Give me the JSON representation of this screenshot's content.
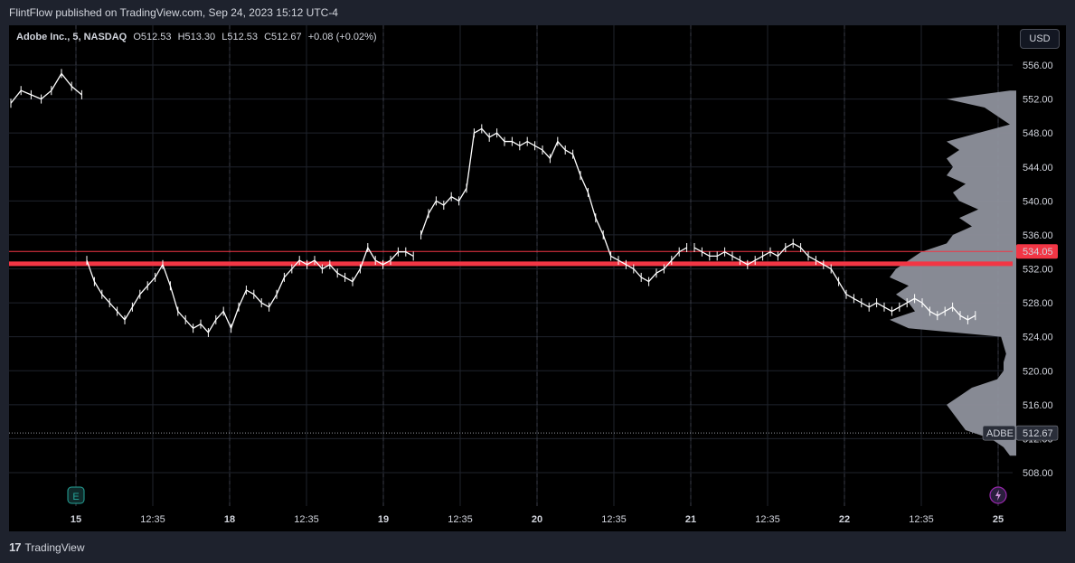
{
  "header": {
    "published": "FlintFlow published on TradingView.com, Sep 24, 2023 15:12 UTC-4"
  },
  "legend": {
    "symbol": "Adobe Inc., 5, NASDAQ",
    "open": "O512.53",
    "high": "H513.30",
    "low": "L512.53",
    "close": "C512.67",
    "change": "+0.08 (+0.02%)"
  },
  "currency_button": "USD",
  "footer": {
    "brand": "TradingView",
    "logo_text": "17"
  },
  "badges": {
    "earnings": "E",
    "event_icon": "lightning-icon"
  },
  "colors": {
    "background": "#000000",
    "candles": "#ffffff",
    "level": "#f23645",
    "profile": "#8e919c"
  },
  "chart_data": {
    "type": "line",
    "title": "",
    "price_axis": {
      "min": 506.0,
      "max": 558.0,
      "ticks": [
        556,
        552,
        548,
        544,
        540,
        536,
        532,
        528,
        524,
        520,
        516,
        512,
        508
      ],
      "tick_labels": [
        "556.00",
        "552.00",
        "548.00",
        "544.00",
        "540.00",
        "536.00",
        "532.00",
        "528.00",
        "524.00",
        "520.00",
        "516.00",
        "512.00",
        "508.00"
      ]
    },
    "time_axis": {
      "labels": [
        "15",
        "12:35",
        "18",
        "12:35",
        "19",
        "12:35",
        "20",
        "12:35",
        "21",
        "12:35",
        "22",
        "12:35",
        "25"
      ],
      "major": [
        true,
        false,
        true,
        false,
        true,
        false,
        true,
        false,
        true,
        false,
        true,
        false,
        true
      ]
    },
    "grid": true,
    "levels": [
      {
        "price": 534.05,
        "label": "534.05",
        "style": "thin"
      },
      {
        "price": 532.6,
        "label": "",
        "style": "thick"
      }
    ],
    "last_price": {
      "symbol": "ADBE",
      "price": 512.67,
      "label": "512.67"
    },
    "series": [
      {
        "x": [
          0,
          0.4,
          0.8,
          1.2,
          1.6,
          2.0,
          2.4,
          2.8
        ],
        "y": [
          551.5,
          553.0,
          552.5,
          552.0,
          553.0,
          555.0,
          553.5,
          552.5
        ]
      },
      {
        "x": [
          3.0,
          3.3,
          3.6,
          3.9,
          4.2,
          4.5,
          4.8,
          5.1,
          5.4,
          5.7,
          6.0,
          6.3,
          6.6,
          6.9,
          7.2,
          7.5,
          7.8,
          8.1,
          8.4,
          8.7,
          9.0,
          9.3,
          9.6,
          9.9,
          10.2,
          10.5,
          10.8,
          11.1,
          11.4,
          11.7,
          12.0,
          12.3,
          12.6,
          12.9,
          13.2,
          13.5,
          13.8,
          14.1,
          14.4,
          14.7,
          15.0,
          15.3,
          15.6,
          15.9
        ],
        "y": [
          533.0,
          530.5,
          529.0,
          528.0,
          527.0,
          526.0,
          527.5,
          529.0,
          530.0,
          531.0,
          532.5,
          530.0,
          527.0,
          526.0,
          525.0,
          525.5,
          524.5,
          526.0,
          527.0,
          525.0,
          527.5,
          529.5,
          529.0,
          528.0,
          527.5,
          529.0,
          531.0,
          532.0,
          533.0,
          532.5,
          533.0,
          532.0,
          532.5,
          531.5,
          531.0,
          530.5,
          532.0,
          534.5,
          533.0,
          532.5,
          533.0,
          534.0,
          534.0,
          533.5
        ]
      },
      {
        "x": [
          16.2,
          16.5,
          16.8,
          17.1,
          17.4,
          17.7,
          18.0,
          18.3,
          18.6,
          18.9,
          19.2,
          19.5,
          19.8,
          20.1,
          20.4,
          20.7,
          21.0,
          21.3,
          21.6,
          21.9,
          22.2,
          22.5,
          22.8,
          23.1,
          23.4,
          23.7,
          24.0,
          24.3,
          24.6,
          24.9,
          25.2,
          25.5,
          25.8,
          26.1,
          26.4,
          26.7
        ],
        "y": [
          536.0,
          538.5,
          540.0,
          539.5,
          540.5,
          540.0,
          541.5,
          548.0,
          548.5,
          547.5,
          548.0,
          547.0,
          547.0,
          546.5,
          547.0,
          546.5,
          546.0,
          545.0,
          547.0,
          546.0,
          545.5,
          543.0,
          541.0,
          538.0,
          536.0,
          533.5,
          533.0,
          532.5,
          532.0,
          531.0,
          530.5,
          531.5,
          532.0,
          533.0,
          534.0,
          534.5
        ]
      },
      {
        "x": [
          27.0,
          27.3,
          27.6,
          27.9,
          28.2,
          28.5,
          28.8,
          29.1,
          29.4,
          29.7,
          30.0,
          30.3,
          30.6,
          30.9,
          31.2,
          31.5,
          31.8,
          32.1,
          32.4,
          32.7,
          33.0,
          33.3,
          33.6,
          33.9,
          34.2,
          34.5,
          34.8,
          35.1,
          35.4,
          35.7,
          36.0,
          36.3,
          36.6,
          36.9,
          37.2,
          37.5,
          37.8,
          38.1
        ],
        "y": [
          534.5,
          534.0,
          533.5,
          533.5,
          534.0,
          533.5,
          533.0,
          532.5,
          533.0,
          533.5,
          534.0,
          533.5,
          534.5,
          535.0,
          534.5,
          533.5,
          533.0,
          532.5,
          532.0,
          530.5,
          529.0,
          528.5,
          528.0,
          527.5,
          528.0,
          527.5,
          527.0,
          527.5,
          528.0,
          528.5,
          528.0,
          527.0,
          526.5,
          527.0,
          527.5,
          526.5,
          526.0,
          526.5
        ]
      }
    ]
  }
}
